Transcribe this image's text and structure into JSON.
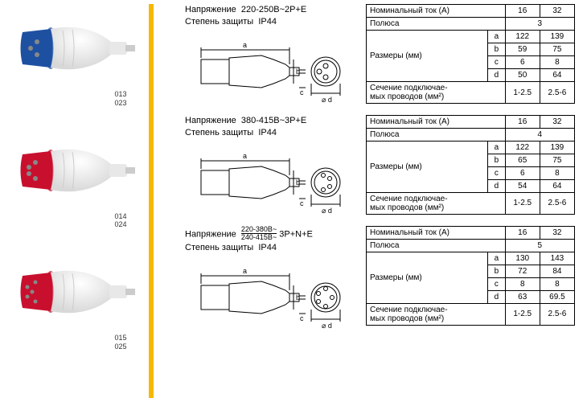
{
  "plugs": [
    {
      "label1": "013",
      "label2": "023",
      "color": "#1e50a2"
    },
    {
      "label1": "014",
      "label2": "024",
      "color": "#c8102e"
    },
    {
      "label1": "015",
      "label2": "025",
      "color": "#c8102e"
    }
  ],
  "sections": [
    {
      "voltage_label": "Напряжение",
      "voltage_value": "220-250В~2P+E",
      "protection_label": "Степень защиты",
      "protection_value": "IP44",
      "pins": 3,
      "table": {
        "current_label": "Номинальный ток (А)",
        "current_vals": [
          "16",
          "32"
        ],
        "poles_label": "Полюса",
        "poles_val": "3",
        "dims_label": "Размеры (мм)",
        "dims": [
          {
            "k": "a",
            "v": [
              "122",
              "139"
            ]
          },
          {
            "k": "b",
            "v": [
              "59",
              "75"
            ]
          },
          {
            "k": "c",
            "v": [
              "6",
              "8"
            ]
          },
          {
            "k": "d",
            "v": [
              "50",
              "64"
            ]
          }
        ],
        "section_label1": "Сечение подключае-",
        "section_label2": "мых проводов (мм²)",
        "section_vals": [
          "1-2.5",
          "2.5-6"
        ]
      }
    },
    {
      "voltage_label": "Напряжение",
      "voltage_value": "380-415В~3P+E",
      "protection_label": "Степень защиты",
      "protection_value": "IP44",
      "pins": 4,
      "table": {
        "current_label": "Номинальный ток (А)",
        "current_vals": [
          "16",
          "32"
        ],
        "poles_label": "Полюса",
        "poles_val": "4",
        "dims_label": "Размеры (мм)",
        "dims": [
          {
            "k": "a",
            "v": [
              "122",
              "139"
            ]
          },
          {
            "k": "b",
            "v": [
              "65",
              "75"
            ]
          },
          {
            "k": "c",
            "v": [
              "6",
              "8"
            ]
          },
          {
            "k": "d",
            "v": [
              "54",
              "64"
            ]
          }
        ],
        "section_label1": "Сечение подключае-",
        "section_label2": "мых проводов (мм²)",
        "section_vals": [
          "1-2.5",
          "2.5-6"
        ]
      }
    },
    {
      "voltage_label": "Напряжение",
      "voltage_frac_num": "220-380В~",
      "voltage_frac_den": "240-415В~",
      "voltage_suffix": "3P+N+E",
      "protection_label": "Степень защиты",
      "protection_value": "IP44",
      "pins": 5,
      "table": {
        "current_label": "Номинальный ток (А)",
        "current_vals": [
          "16",
          "32"
        ],
        "poles_label": "Полюса",
        "poles_val": "5",
        "dims_label": "Размеры (мм)",
        "dims": [
          {
            "k": "a",
            "v": [
              "130",
              "143"
            ]
          },
          {
            "k": "b",
            "v": [
              "72",
              "84"
            ]
          },
          {
            "k": "c",
            "v": [
              "8",
              "8"
            ]
          },
          {
            "k": "d",
            "v": [
              "63",
              "69.5"
            ]
          }
        ],
        "section_label1": "Сечение подключае-",
        "section_label2": "мых проводов (мм²)",
        "section_vals": [
          "1-2.5",
          "2.5-6"
        ]
      }
    }
  ],
  "colors": {
    "yellow": "#f5b800",
    "border": "#000000",
    "bg": "#ffffff",
    "plug_body": "#eeeeee",
    "plug_body_shade": "#cccccc"
  }
}
